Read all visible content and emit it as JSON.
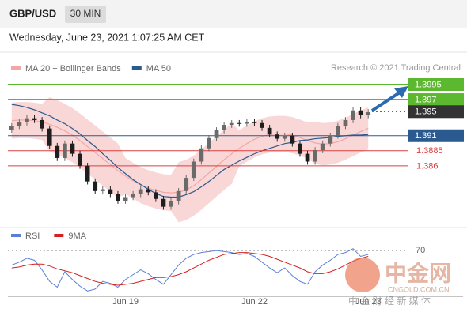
{
  "header": {
    "symbol": "GBP/USD",
    "interval": "30 MIN",
    "timestamp": "Wednesday, June 23, 2021 1:07:25 AM CET",
    "source": "Research © 2021 Trading Central"
  },
  "watermark": {
    "name": "中金网",
    "site": "CNGOLD.COM.CN",
    "slogan": "中 金 财 经 新 媒 体"
  },
  "chart_data": [
    {
      "type": "candlestick",
      "up_color": "#6a6a6a",
      "down_color": "#1e1e1e",
      "categories": [
        null,
        null,
        null,
        null,
        null,
        null,
        null,
        null,
        null,
        null,
        null,
        null,
        null,
        null,
        null,
        "Jun 19",
        null,
        null,
        null,
        null,
        null,
        null,
        null,
        null,
        null,
        null,
        null,
        null,
        null,
        null,
        null,
        null,
        "Jun 22",
        null,
        null,
        null,
        null,
        null,
        null,
        null,
        null,
        null,
        null,
        null,
        null,
        null,
        null,
        "Jun 23"
      ],
      "open": [
        1.392,
        1.3926,
        1.3932,
        1.3939,
        1.3936,
        1.3922,
        1.3893,
        1.3873,
        1.3897,
        1.388,
        1.386,
        1.3834,
        1.3818,
        1.3821,
        1.3813,
        1.3802,
        1.3808,
        1.3813,
        1.3821,
        1.3816,
        1.3805,
        1.3792,
        1.3801,
        1.3818,
        1.384,
        1.3867,
        1.3889,
        1.3906,
        1.3919,
        1.3928,
        1.3931,
        1.393,
        1.3933,
        1.3931,
        1.3923,
        1.3912,
        1.3905,
        1.391,
        1.3897,
        1.388,
        1.3867,
        1.3886,
        1.3897,
        1.391,
        1.3926,
        1.3936,
        1.3952,
        1.3944
      ],
      "high": [
        1.3931,
        1.3937,
        1.3944,
        1.3944,
        1.3941,
        1.3927,
        1.3898,
        1.3902,
        1.3902,
        1.3885,
        1.3865,
        1.3839,
        1.3826,
        1.3826,
        1.3818,
        1.3813,
        1.3818,
        1.3826,
        1.3826,
        1.3821,
        1.381,
        1.3806,
        1.3823,
        1.3845,
        1.3872,
        1.3894,
        1.3911,
        1.3924,
        1.3933,
        1.3936,
        1.3936,
        1.3938,
        1.3938,
        1.3936,
        1.3928,
        1.3917,
        1.3915,
        1.3915,
        1.3902,
        1.3885,
        1.3891,
        1.3902,
        1.3915,
        1.3931,
        1.3941,
        1.3957,
        1.3957,
        1.3954
      ],
      "low": [
        1.3915,
        1.3921,
        1.3927,
        1.3931,
        1.3917,
        1.3888,
        1.3868,
        1.3868,
        1.3875,
        1.3855,
        1.3829,
        1.3813,
        1.3813,
        1.3808,
        1.3797,
        1.3797,
        1.3803,
        1.3808,
        1.3811,
        1.38,
        1.3787,
        1.3787,
        1.3796,
        1.3813,
        1.3835,
        1.3862,
        1.3884,
        1.3901,
        1.3914,
        1.3923,
        1.3925,
        1.3925,
        1.3926,
        1.3918,
        1.3907,
        1.39,
        1.39,
        1.3892,
        1.3875,
        1.3862,
        1.3862,
        1.3881,
        1.3892,
        1.3905,
        1.3921,
        1.3931,
        1.3939,
        1.3939
      ],
      "close": [
        1.3926,
        1.3932,
        1.3939,
        1.3936,
        1.3922,
        1.3893,
        1.3873,
        1.3897,
        1.388,
        1.386,
        1.3834,
        1.3818,
        1.3821,
        1.3813,
        1.3802,
        1.3808,
        1.3813,
        1.3821,
        1.3816,
        1.3805,
        1.3792,
        1.3801,
        1.3818,
        1.384,
        1.3867,
        1.3889,
        1.3906,
        1.3919,
        1.3928,
        1.3931,
        1.393,
        1.3933,
        1.3931,
        1.3923,
        1.3912,
        1.3905,
        1.391,
        1.3897,
        1.388,
        1.3867,
        1.3886,
        1.3897,
        1.391,
        1.3926,
        1.3936,
        1.3952,
        1.3944,
        1.3949
      ],
      "bands": {
        "name": "MA 20 + Bollinger Bands",
        "color": "#f4a6a6",
        "middle": [
          1.3935,
          1.3936,
          1.3936,
          1.3935,
          1.3933,
          1.3929,
          1.3924,
          1.3918,
          1.3911,
          1.3902,
          1.3892,
          1.3882,
          1.3872,
          1.3862,
          1.3852,
          1.3843,
          1.3835,
          1.3828,
          1.3823,
          1.3819,
          1.3816,
          1.3815,
          1.3816,
          1.382,
          1.3827,
          1.3837,
          1.3848,
          1.3859,
          1.387,
          1.388,
          1.3889,
          1.3897,
          1.3904,
          1.3909,
          1.3912,
          1.3913,
          1.3913,
          1.3911,
          1.3907,
          1.3902,
          1.3898,
          1.3896,
          1.3897,
          1.39,
          1.3905,
          1.3911,
          1.3917,
          1.3922
        ],
        "upper": [
          1.3965,
          1.3966,
          1.3966,
          1.3965,
          1.3963,
          1.3974,
          1.3969,
          1.3963,
          1.3956,
          1.3947,
          1.3937,
          1.3927,
          1.3917,
          1.3907,
          1.3897,
          1.3873,
          1.3865,
          1.3858,
          1.3853,
          1.3849,
          1.3846,
          1.3845,
          1.3866,
          1.387,
          1.3877,
          1.3887,
          1.3898,
          1.3909,
          1.392,
          1.393,
          1.3919,
          1.3927,
          1.3934,
          1.3939,
          1.3942,
          1.3943,
          1.3943,
          1.3941,
          1.3937,
          1.3932,
          1.3933,
          1.3931,
          1.3932,
          1.3935,
          1.394,
          1.3946,
          1.3952,
          1.3957
        ],
        "lower": [
          1.3905,
          1.3906,
          1.3906,
          1.3905,
          1.3903,
          1.3884,
          1.3879,
          1.3873,
          1.3866,
          1.3857,
          1.3847,
          1.3837,
          1.3827,
          1.3817,
          1.3807,
          1.3813,
          1.3805,
          1.3798,
          1.3793,
          1.3789,
          1.3786,
          1.3785,
          1.3766,
          1.377,
          1.3777,
          1.3787,
          1.3798,
          1.3809,
          1.382,
          1.383,
          1.3859,
          1.3867,
          1.3874,
          1.3879,
          1.3882,
          1.3883,
          1.3883,
          1.3881,
          1.3877,
          1.3872,
          1.3863,
          1.3861,
          1.3862,
          1.3865,
          1.387,
          1.3876,
          1.3882,
          1.3887
        ]
      },
      "series": [
        {
          "name": "MA 50",
          "color": "#2a5a8f",
          "values": [
            1.3962,
            1.396,
            1.3957,
            1.3953,
            1.3948,
            1.3943,
            1.3936,
            1.393,
            1.3922,
            1.3913,
            1.3902,
            1.3892,
            1.388,
            1.3869,
            1.3857,
            1.3847,
            1.3837,
            1.3829,
            1.3821,
            1.3814,
            1.3809,
            1.3808,
            1.3808,
            1.3812,
            1.3817,
            1.3825,
            1.3834,
            1.3844,
            1.3854,
            1.3861,
            1.3868,
            1.3874,
            1.388,
            1.3885,
            1.3889,
            1.3893,
            1.3897,
            1.3899,
            1.3902,
            1.3903,
            1.3905,
            1.3906,
            1.3907,
            1.3909,
            1.391,
            1.3911,
            1.3911,
            1.3912
          ]
        }
      ],
      "levels": [
        {
          "value": 1.3995,
          "color": "#5cb82e",
          "style": "box",
          "dashed": false
        },
        {
          "value": 1.397,
          "color": "#5cb82e",
          "style": "box",
          "dashed": false
        },
        {
          "value": 1.395,
          "color": "#333333",
          "style": "box",
          "dashed": true
        },
        {
          "value": 1.391,
          "color": "#2a5a8f",
          "style": "box",
          "dashed": false
        },
        {
          "value": 1.3885,
          "color": "#d94040",
          "style": "text",
          "dashed": false
        },
        {
          "value": 1.386,
          "color": "#d94040",
          "style": "text",
          "dashed": false
        }
      ],
      "ylim": [
        1.3764,
        1.4037
      ]
    },
    {
      "type": "line",
      "series": [
        {
          "name": "RSI",
          "color": "#5b7fd6",
          "values": [
            55,
            58,
            62,
            60,
            50,
            38,
            32,
            48,
            40,
            33,
            28,
            30,
            38,
            36,
            32,
            40,
            45,
            50,
            46,
            40,
            35,
            45,
            55,
            62,
            66,
            68,
            69,
            70,
            69,
            68,
            66,
            67,
            64,
            58,
            52,
            47,
            52,
            44,
            38,
            35,
            48,
            55,
            60,
            66,
            68,
            72,
            64,
            66
          ]
        },
        {
          "name": "9MA",
          "color": "#d62020",
          "values": [
            52,
            53,
            55,
            56,
            56,
            54,
            51,
            49,
            47,
            44,
            41,
            38,
            36,
            35,
            34,
            35,
            36,
            38,
            40,
            42,
            42,
            43,
            45,
            48,
            52,
            56,
            60,
            63,
            66,
            67,
            68,
            68,
            67,
            66,
            64,
            61,
            58,
            55,
            52,
            48,
            46,
            46,
            48,
            51,
            55,
            59,
            62,
            64
          ]
        }
      ],
      "ylim": [
        25,
        80
      ],
      "yticks": [
        70
      ]
    }
  ]
}
